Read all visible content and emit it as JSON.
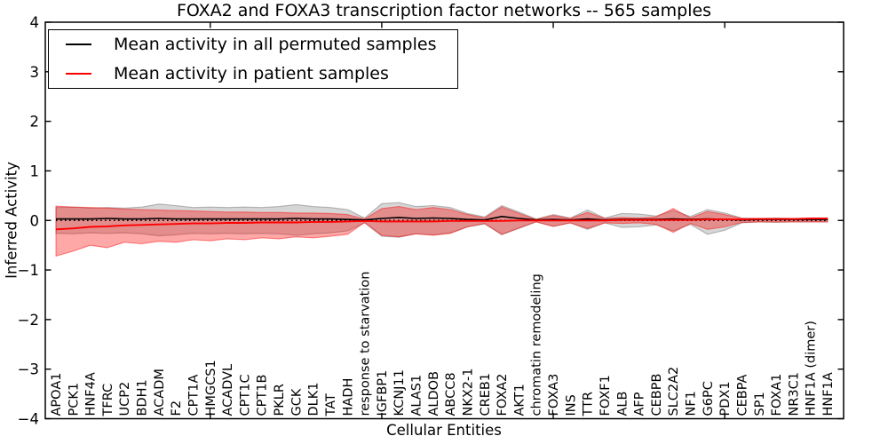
{
  "title": "FOXA2 and FOXA3 transcription factor networks -- 565 samples",
  "legend": {
    "entries": [
      {
        "label": "Mean activity in all permuted samples",
        "color": "#000000"
      },
      {
        "label": "Mean activity in patient samples",
        "color": "#ff0000"
      }
    ]
  },
  "chart_data": {
    "type": "line",
    "title": "FOXA2 and FOXA3 transcription factor networks -- 565 samples",
    "xlabel": "Cellular Entities",
    "ylabel": "Inferred Activity",
    "ylim": [
      -4,
      4
    ],
    "yticks": [
      -4,
      -3,
      -2,
      -1,
      0,
      1,
      2,
      3,
      4
    ],
    "xticks_top": [
      10,
      20,
      30,
      40
    ],
    "grid": false,
    "legend_position": "upper left",
    "zero_reference_line": 0,
    "categories": [
      "APOA1",
      "PCK1",
      "HNF4A",
      "TFRC",
      "UCP2",
      "BDH1",
      "ACADM",
      "F2",
      "CPT1A",
      "HMGCS1",
      "ACADVL",
      "CPT1C",
      "CPT1B",
      "PKLR",
      "GCK",
      "DLK1",
      "TAT",
      "HADH",
      "response to starvation",
      "IGFBP1",
      "KCNJ11",
      "ALAS1",
      "ALDOB",
      "ABCC8",
      "NKX2-1",
      "CREB1",
      "FOXA2",
      "AKT1",
      "chromatin remodeling",
      "FOXA3",
      "INS",
      "TTR",
      "FOXF1",
      "ALB",
      "AFP",
      "CEBPB",
      "SLC2A2",
      "NF1",
      "G6PC",
      "PDX1",
      "CEBPA",
      "SP1",
      "FOXA1",
      "NR3C1",
      "HNF1A (dimer)",
      "HNF1A"
    ],
    "series": [
      {
        "name": "Mean activity in all permuted samples",
        "color": "#000000",
        "values": [
          0.03,
          0.03,
          0.03,
          0.04,
          0.03,
          0.03,
          0.04,
          0.03,
          0.03,
          0.03,
          0.03,
          0.03,
          0.03,
          0.03,
          0.04,
          0.03,
          0.03,
          0.02,
          0.01,
          0.04,
          0.06,
          0.04,
          0.05,
          0.04,
          0.02,
          0.01,
          0.08,
          0.04,
          0.01,
          0.02,
          0.01,
          0.03,
          0.01,
          0.02,
          0.02,
          0.02,
          0.03,
          0.02,
          0.03,
          0.02,
          0.01,
          0.02,
          0.02,
          0.02,
          0.02,
          0.02
        ]
      },
      {
        "name": "Mean activity in patient samples",
        "color": "#ff0000",
        "values": [
          -0.18,
          -0.16,
          -0.13,
          -0.12,
          -0.1,
          -0.09,
          -0.08,
          -0.07,
          -0.06,
          -0.06,
          -0.05,
          -0.05,
          -0.04,
          -0.04,
          -0.04,
          -0.03,
          -0.03,
          -0.02,
          -0.01,
          -0.02,
          -0.02,
          -0.02,
          -0.02,
          -0.01,
          -0.01,
          -0.01,
          -0.01,
          0.0,
          0.0,
          0.0,
          0.0,
          0.0,
          0.0,
          0.01,
          0.01,
          0.01,
          0.01,
          0.01,
          0.02,
          0.02,
          0.02,
          0.03,
          0.03,
          0.03,
          0.04,
          0.04
        ]
      }
    ],
    "bands": [
      {
        "name": "permuted-samples-range",
        "fill_color": "#000000",
        "fill_opacity": 0.16,
        "edge_color": "rgba(0,0,0,0.25)",
        "upper": [
          0.26,
          0.27,
          0.25,
          0.26,
          0.25,
          0.27,
          0.33,
          0.3,
          0.26,
          0.27,
          0.26,
          0.27,
          0.26,
          0.28,
          0.32,
          0.28,
          0.26,
          0.22,
          0.05,
          0.34,
          0.36,
          0.28,
          0.3,
          0.26,
          0.14,
          0.07,
          0.3,
          0.17,
          0.03,
          0.12,
          0.05,
          0.21,
          0.05,
          0.14,
          0.13,
          0.09,
          0.2,
          0.08,
          0.22,
          0.15,
          0.05,
          0.04,
          0.05,
          0.04,
          0.03,
          0.03
        ],
        "lower": [
          -0.26,
          -0.27,
          -0.25,
          -0.26,
          -0.25,
          -0.27,
          -0.31,
          -0.29,
          -0.26,
          -0.27,
          -0.26,
          -0.27,
          -0.26,
          -0.27,
          -0.3,
          -0.27,
          -0.25,
          -0.21,
          -0.05,
          -0.32,
          -0.34,
          -0.27,
          -0.29,
          -0.25,
          -0.13,
          -0.07,
          -0.29,
          -0.16,
          -0.03,
          -0.12,
          -0.05,
          -0.18,
          -0.05,
          -0.14,
          -0.13,
          -0.09,
          -0.21,
          -0.08,
          -0.28,
          -0.2,
          -0.05,
          -0.03,
          -0.04,
          -0.03,
          -0.03,
          -0.03
        ]
      },
      {
        "name": "patient-samples-range",
        "fill_color": "#ff0000",
        "fill_opacity": 0.34,
        "edge_color": "rgba(255,0,0,0.45)",
        "upper": [
          0.29,
          0.27,
          0.26,
          0.25,
          0.23,
          0.22,
          0.21,
          0.2,
          0.19,
          0.18,
          0.17,
          0.17,
          0.16,
          0.16,
          0.15,
          0.15,
          0.14,
          0.12,
          0.03,
          0.24,
          0.28,
          0.22,
          0.26,
          0.22,
          0.12,
          0.05,
          0.27,
          0.14,
          0.02,
          0.1,
          0.04,
          0.16,
          0.04,
          0.06,
          0.05,
          0.07,
          0.24,
          0.05,
          0.18,
          0.12,
          0.04,
          0.04,
          0.04,
          0.04,
          0.04,
          0.05
        ],
        "lower": [
          -0.72,
          -0.62,
          -0.5,
          -0.55,
          -0.44,
          -0.47,
          -0.42,
          -0.44,
          -0.39,
          -0.41,
          -0.37,
          -0.39,
          -0.35,
          -0.37,
          -0.33,
          -0.35,
          -0.32,
          -0.28,
          -0.04,
          -0.3,
          -0.33,
          -0.27,
          -0.3,
          -0.26,
          -0.13,
          -0.06,
          -0.28,
          -0.15,
          -0.03,
          -0.12,
          -0.05,
          -0.16,
          -0.05,
          -0.06,
          -0.05,
          -0.08,
          -0.24,
          -0.06,
          -0.18,
          -0.13,
          -0.04,
          -0.03,
          -0.03,
          -0.03,
          -0.03,
          -0.03
        ]
      }
    ]
  }
}
